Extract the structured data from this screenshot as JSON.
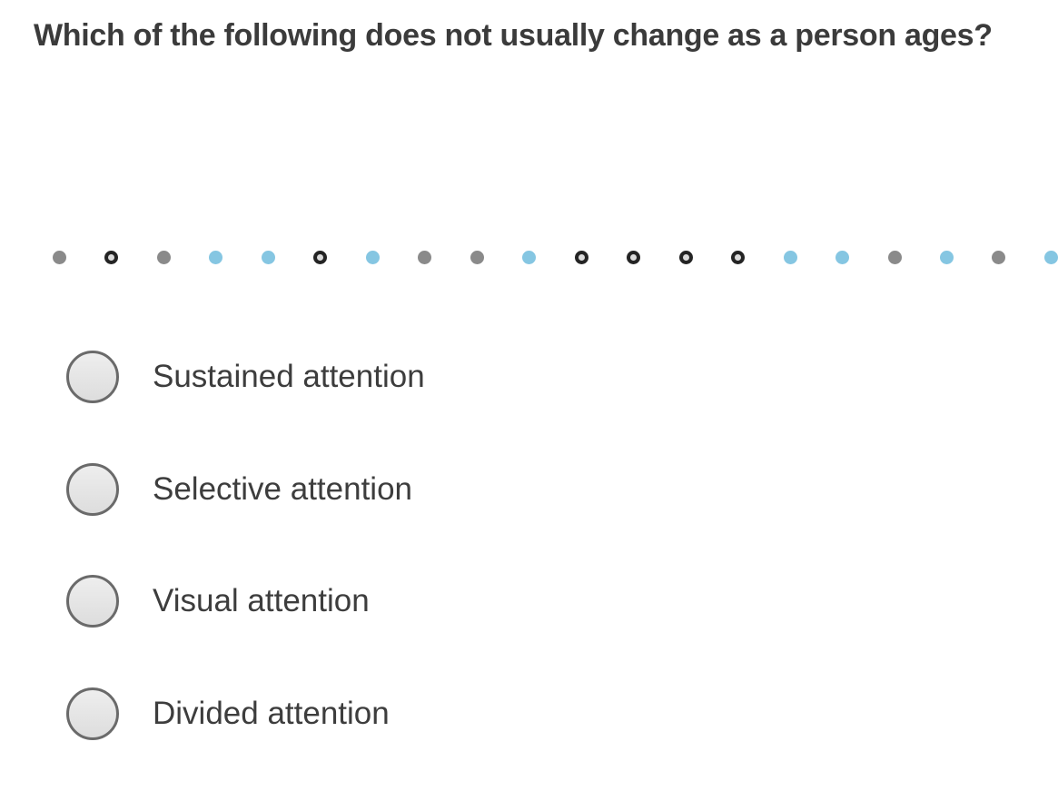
{
  "question": {
    "title": "Which of the following does not usually change as a person ages?"
  },
  "progress": {
    "dots": [
      "gray",
      "ring",
      "gray",
      "blue",
      "blue",
      "ring",
      "blue",
      "gray",
      "gray",
      "blue",
      "ring",
      "ring",
      "ring",
      "ring",
      "blue",
      "blue",
      "gray",
      "blue",
      "gray",
      "blue"
    ]
  },
  "options": [
    {
      "label": "Sustained attention"
    },
    {
      "label": "Selective attention"
    },
    {
      "label": "Visual attention"
    },
    {
      "label": "Divided attention"
    }
  ],
  "colors": {
    "background": "#ffffff",
    "title_text": "#3b3b3b",
    "option_text": "#3d3d3d",
    "dot_gray": "#8a8a8a",
    "dot_blue": "#85c6e2",
    "dot_ring_border": "#242424",
    "dot_ring_center": "#dcdcdc",
    "radio_border": "#6a6a6a",
    "radio_fill_top": "#eeeeee",
    "radio_fill_bottom": "#dddddd"
  }
}
